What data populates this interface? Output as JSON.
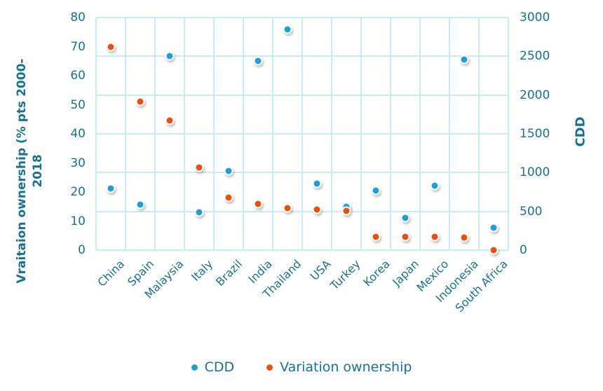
{
  "chart_data": {
    "type": "scatter",
    "title": "",
    "categories": [
      "China",
      "Spain",
      "Malaysia",
      "Italy",
      "Brazil",
      "India",
      "Thailand",
      "USA",
      "Turkey",
      "Korea",
      "Japan",
      "Mexico",
      "Indonesia",
      "South Africa"
    ],
    "series": [
      {
        "name": "CDD",
        "axis": "right",
        "color": "#1E9FD8",
        "values": [
          800,
          590,
          2500,
          490,
          1020,
          2440,
          2850,
          860,
          560,
          770,
          420,
          830,
          2460,
          290
        ]
      },
      {
        "name": "Variation ownership",
        "axis": "left",
        "color": "#E6520D",
        "values": [
          70,
          51,
          44.5,
          28.5,
          18,
          16,
          14.5,
          14,
          13.5,
          4.5,
          4.5,
          4.5,
          4.3,
          0
        ]
      }
    ],
    "left_axis": {
      "title_line1": "Vraitaion ownership (% pts 2000-",
      "title_line2": "2018",
      "min": 0,
      "max": 80,
      "ticks": [
        80,
        70,
        60,
        50,
        40,
        30,
        20,
        10,
        0
      ]
    },
    "right_axis": {
      "title": "CDD",
      "min": 0,
      "max": 3000,
      "ticks": [
        3000,
        2500,
        2000,
        1500,
        1000,
        500,
        0
      ]
    },
    "legend": [
      "CDD",
      "Variation ownership"
    ],
    "legend_position": "bottom",
    "grid": "on",
    "colors": {
      "text": "#17718F",
      "grid": "#C9EBF7",
      "cdd_point": "#1E9FD8",
      "variation_point": "#E6520D"
    }
  }
}
